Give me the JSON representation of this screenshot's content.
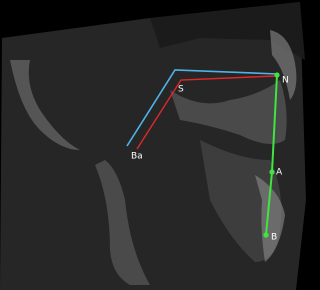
{
  "landmarks": [
    {
      "label": "Ba"
    },
    {
      "label": "S"
    },
    {
      "label": "N"
    },
    {
      "label": "A"
    },
    {
      "label": "B"
    }
  ]
}
